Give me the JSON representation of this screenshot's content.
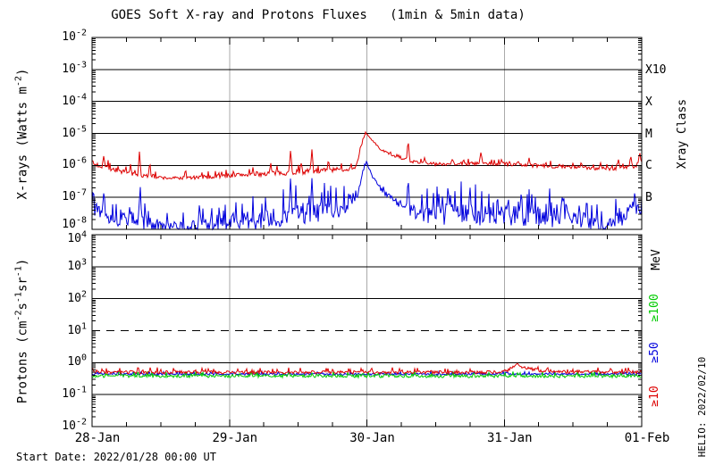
{
  "title": "GOES Soft X-ray and Protons Fluxes   (1min & 5min data)",
  "footer_start_date": "Start Date: 2022/01/28 00:00 UT",
  "credit": "HELIO: 2022/02/10",
  "colors": {
    "xray_long_red": "#dd0000",
    "xray_short_blue": "#0000dd",
    "proton_ge100_green": "#00cc00",
    "proton_ge50_blue": "#0000dd",
    "proton_ge10_red": "#dd0000",
    "day_gridline_gray": "#aaaaaa",
    "frame_black": "#000000"
  },
  "chart_data": [
    {
      "panel": "xray",
      "type": "line",
      "yscale": "log",
      "ylabel": "X-rays (Watts m^-2)",
      "ylabel_parts": {
        "pre": "X-rays (Watts m",
        "sup": "-2",
        "post": ")"
      },
      "ylim": [
        1e-08,
        0.01
      ],
      "ytick_exponents": [
        -2,
        -3,
        -4,
        -5,
        -6,
        -7,
        -8
      ],
      "hlines": [
        {
          "exp": -3,
          "style": "solid"
        },
        {
          "exp": -4,
          "style": "solid"
        },
        {
          "exp": -5,
          "style": "solid"
        },
        {
          "exp": -6,
          "style": "solid"
        },
        {
          "exp": -7,
          "style": "solid"
        }
      ],
      "right_axis_title": "Xray Class",
      "right_labels": [
        {
          "text": "X10",
          "exp": -3
        },
        {
          "text": "X",
          "exp": -4
        },
        {
          "text": "M",
          "exp": -5
        },
        {
          "text": "C",
          "exp": -6
        },
        {
          "text": "B",
          "exp": -7
        }
      ],
      "series": [
        {
          "name": "xray-long-red",
          "color": "#dd0000",
          "seed": 7,
          "keypoints": [
            [
              0.0,
              -5.95,
              0.1
            ],
            [
              0.1,
              -6.05,
              0.09
            ],
            [
              0.3,
              -6.3,
              0.07
            ],
            [
              0.55,
              -6.4,
              0.05
            ],
            [
              0.8,
              -6.38,
              0.06
            ],
            [
              1.05,
              -6.3,
              0.07
            ],
            [
              1.35,
              -6.24,
              0.08
            ],
            [
              1.6,
              -6.18,
              0.08
            ],
            [
              1.85,
              -6.12,
              0.07
            ],
            [
              1.92,
              -6.05,
              0.05
            ],
            [
              1.96,
              -5.4,
              0.03
            ],
            [
              1.99,
              -4.97,
              0.02
            ],
            [
              2.03,
              -5.18,
              0.02
            ],
            [
              2.1,
              -5.5,
              0.03
            ],
            [
              2.2,
              -5.72,
              0.03
            ],
            [
              2.33,
              -5.88,
              0.04
            ],
            [
              2.5,
              -5.96,
              0.05
            ],
            [
              2.7,
              -5.94,
              0.06
            ],
            [
              3.0,
              -5.96,
              0.06
            ],
            [
              3.3,
              -6.02,
              0.06
            ],
            [
              3.6,
              -6.08,
              0.06
            ],
            [
              3.8,
              -6.1,
              0.06
            ],
            [
              3.95,
              -6.02,
              0.07
            ],
            [
              4.0,
              -5.85,
              0.05
            ]
          ],
          "spikes": [
            [
              0.085,
              -5.7,
              0.012
            ],
            [
              0.28,
              -5.95,
              0.01
            ],
            [
              0.345,
              -5.55,
              0.012
            ],
            [
              0.42,
              -5.85,
              0.01
            ],
            [
              0.68,
              -6.05,
              0.008
            ],
            [
              1.3,
              -5.9,
              0.01
            ],
            [
              1.445,
              -5.48,
              0.012
            ],
            [
              1.52,
              -5.85,
              0.008
            ],
            [
              1.6,
              -5.5,
              0.012
            ],
            [
              1.72,
              -5.78,
              0.01
            ],
            [
              2.3,
              -5.18,
              0.012
            ],
            [
              2.42,
              -5.75,
              0.01
            ],
            [
              2.62,
              -5.8,
              0.01
            ],
            [
              2.83,
              -5.58,
              0.014
            ],
            [
              2.98,
              -5.8,
              0.01
            ],
            [
              3.1,
              -5.85,
              0.01
            ],
            [
              3.18,
              -5.75,
              0.01
            ],
            [
              3.4,
              -5.95,
              0.01
            ],
            [
              3.56,
              -5.88,
              0.01
            ],
            [
              3.7,
              -5.9,
              0.01
            ],
            [
              3.83,
              -5.8,
              0.012
            ],
            [
              3.92,
              -5.68,
              0.012
            ],
            [
              3.985,
              -5.55,
              0.01
            ]
          ]
        },
        {
          "name": "xray-short-blue",
          "color": "#0000dd",
          "seed": 13,
          "keypoints": [
            [
              0.0,
              -7.25,
              0.35
            ],
            [
              0.2,
              -7.6,
              0.35
            ],
            [
              0.4,
              -7.85,
              0.25
            ],
            [
              0.6,
              -7.95,
              0.15
            ],
            [
              0.75,
              -7.9,
              0.2
            ],
            [
              0.95,
              -7.8,
              0.3
            ],
            [
              1.2,
              -7.75,
              0.3
            ],
            [
              1.5,
              -7.5,
              0.35
            ],
            [
              1.8,
              -7.4,
              0.3
            ],
            [
              1.93,
              -7.0,
              0.1
            ],
            [
              1.97,
              -6.2,
              0.05
            ],
            [
              2.0,
              -5.92,
              0.03
            ],
            [
              2.04,
              -6.35,
              0.05
            ],
            [
              2.12,
              -6.85,
              0.08
            ],
            [
              2.25,
              -7.25,
              0.15
            ],
            [
              2.4,
              -7.5,
              0.3
            ],
            [
              2.7,
              -7.55,
              0.38
            ],
            [
              3.0,
              -7.6,
              0.38
            ],
            [
              3.3,
              -7.55,
              0.38
            ],
            [
              3.55,
              -7.6,
              0.35
            ],
            [
              3.72,
              -7.9,
              0.15
            ],
            [
              3.85,
              -7.6,
              0.3
            ],
            [
              4.0,
              -7.25,
              0.25
            ]
          ],
          "spikes": [
            [
              0.085,
              -6.85,
              0.01
            ],
            [
              0.35,
              -6.55,
              0.012
            ],
            [
              1.445,
              -6.3,
              0.012
            ],
            [
              1.6,
              -6.4,
              0.012
            ],
            [
              1.88,
              -6.9,
              0.008
            ],
            [
              2.3,
              -6.35,
              0.012
            ],
            [
              2.55,
              -6.95,
              0.01
            ],
            [
              2.75,
              -6.6,
              0.012
            ],
            [
              2.95,
              -6.85,
              0.01
            ],
            [
              3.2,
              -6.9,
              0.01
            ],
            [
              3.45,
              -7.0,
              0.008
            ],
            [
              3.6,
              -6.85,
              0.008
            ],
            [
              3.95,
              -6.75,
              0.01
            ]
          ]
        }
      ]
    },
    {
      "panel": "protons",
      "type": "line",
      "yscale": "log",
      "ylabel": "Protons (cm^-2 s^-1 sr^-1)",
      "ylabel_parts": {
        "pre": "Protons (cm",
        "sup1": "-2",
        "mid1": "s",
        "sup2": "-1",
        "mid2": "sr",
        "sup3": "-1",
        "post": ")"
      },
      "ylim": [
        0.01,
        10000.0
      ],
      "ytick_exponents": [
        4,
        3,
        2,
        1,
        0,
        -1,
        -2
      ],
      "x_tick_labels": [
        "28-Jan",
        "29-Jan",
        "30-Jan",
        "31-Jan",
        "01-Feb"
      ],
      "x_minor_ticks_per_day": 4,
      "hlines": [
        {
          "exp": 3,
          "style": "solid"
        },
        {
          "exp": 2,
          "style": "solid"
        },
        {
          "exp": 1,
          "style": "dashed"
        },
        {
          "exp": 0,
          "style": "solid"
        },
        {
          "exp": -1,
          "style": "solid"
        }
      ],
      "right_axis_title": "MeV",
      "right_labels": [
        {
          "text": "≥100",
          "exp": 1.7,
          "color": "#00cc00"
        },
        {
          "text": "≥50",
          "exp": 0.33,
          "color": "#0000dd"
        },
        {
          "text": "≥10",
          "exp": -1.05,
          "color": "#dd0000"
        }
      ],
      "series": [
        {
          "name": "proton-ge50-blue",
          "color": "#0000dd",
          "seed": 5,
          "keypoints": [
            [
              0.0,
              -0.36,
              0.03
            ],
            [
              4.0,
              -0.36,
              0.03
            ]
          ],
          "spikes": []
        },
        {
          "name": "proton-ge100-green",
          "color": "#00cc00",
          "seed": 9,
          "keypoints": [
            [
              0.0,
              -0.42,
              0.05
            ],
            [
              4.0,
              -0.42,
              0.05
            ]
          ],
          "spikes": []
        },
        {
          "name": "proton-ge10-red",
          "color": "#dd0000",
          "seed": 3,
          "keypoints": [
            [
              0.0,
              -0.3,
              0.05
            ],
            [
              2.9,
              -0.3,
              0.05
            ],
            [
              3.02,
              -0.26,
              0.05
            ],
            [
              3.08,
              -0.1,
              0.05
            ],
            [
              3.13,
              -0.15,
              0.05
            ],
            [
              3.25,
              -0.24,
              0.05
            ],
            [
              3.45,
              -0.29,
              0.05
            ],
            [
              4.0,
              -0.3,
              0.05
            ]
          ],
          "spikes": [
            [
              3.095,
              -0.02,
              0.02
            ]
          ]
        }
      ]
    }
  ]
}
